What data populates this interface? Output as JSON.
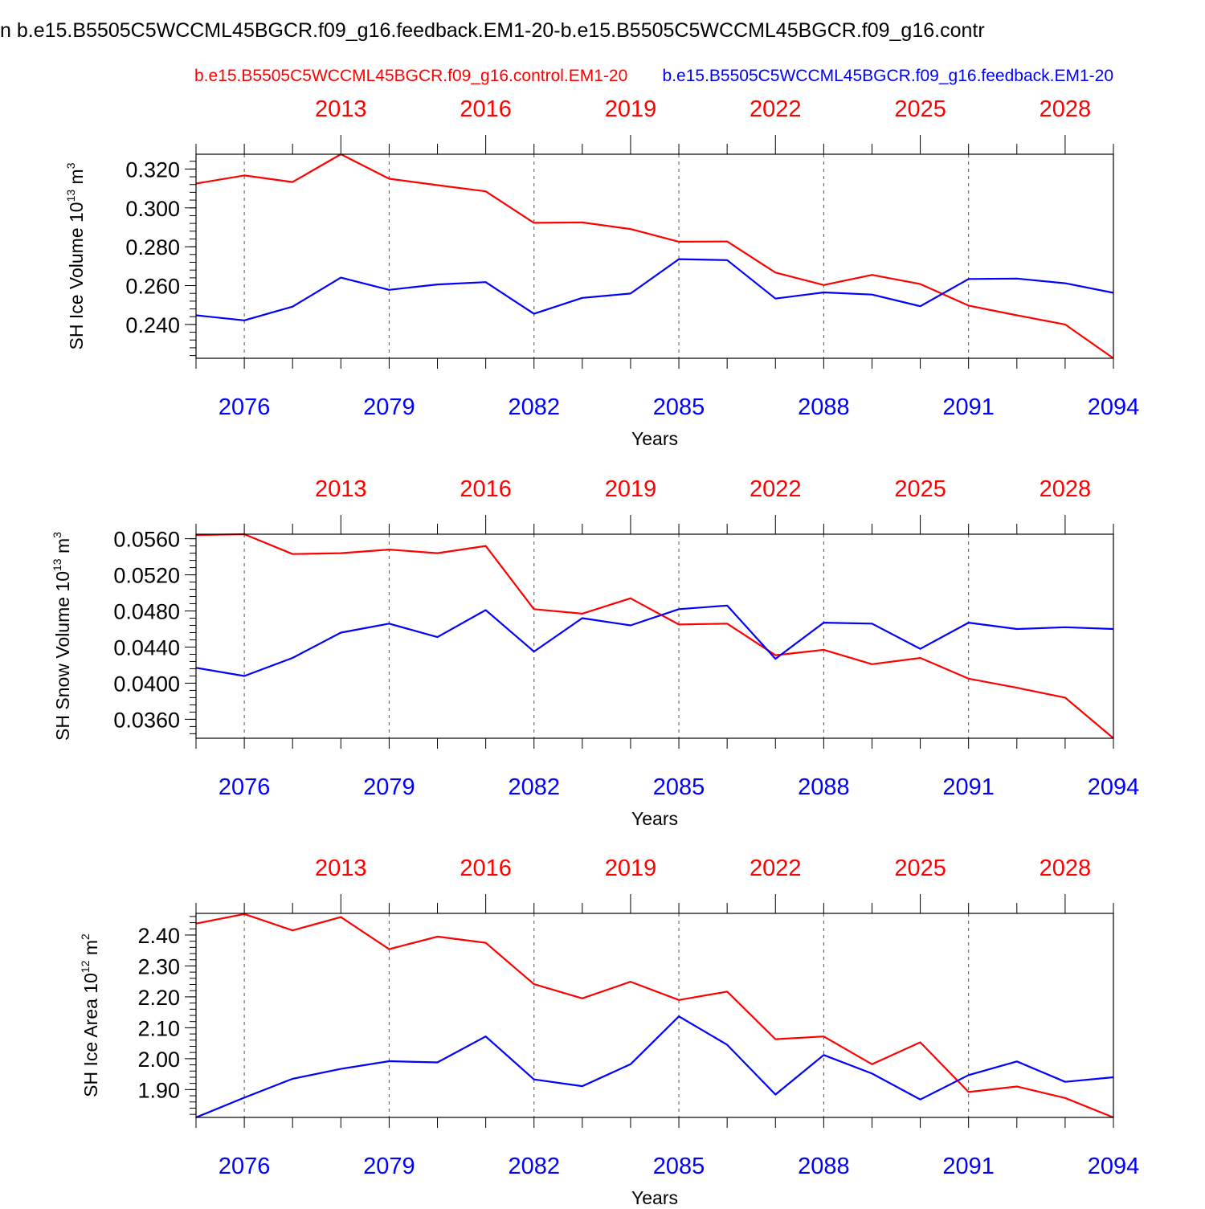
{
  "figure": {
    "title": "n b.e15.B5505C5WCCML45BGCR.f09_g16.feedback.EM1-20-b.e15.B5505C5WCCML45BGCR.f09_g16.contr",
    "legend_red": "b.e15.B5505C5WCCML45BGCR.f09_g16.control.EM1-20",
    "legend_blue": "b.e15.B5505C5WCCML45BGCR.f09_g16.feedback.EM1-20",
    "colors": {
      "red": "#ff0000",
      "blue": "#0000ff",
      "axis": "#000000",
      "grid": "#555555"
    }
  },
  "chart_data": [
    {
      "type": "line",
      "ylabel": "SH Ice Volume",
      "ylabel_unit": "10",
      "ylabel_exp": "13",
      "ylabel_unit2": "m",
      "ylabel_exp2": "3",
      "xlabel": "Years",
      "ylim": [
        0.2226,
        0.3276
      ],
      "yticks": [
        "0.240",
        "0.260",
        "0.280",
        "0.300",
        "0.320"
      ],
      "ytick_values": [
        0.24,
        0.26,
        0.28,
        0.3,
        0.32
      ],
      "ymajor_step": 0.02,
      "yminor_step": 0.004,
      "x_bottom": [
        2075,
        2076,
        2077,
        2078,
        2079,
        2080,
        2081,
        2082,
        2083,
        2084,
        2085,
        2086,
        2087,
        2088,
        2089,
        2090,
        2091,
        2092,
        2093,
        2094
      ],
      "bottom_tick_labels": [
        "2076",
        "2079",
        "2082",
        "2085",
        "2088",
        "2091",
        "2094"
      ],
      "top_tick_labels": [
        "2013",
        "2016",
        "2019",
        "2022",
        "2025",
        "2028"
      ],
      "series": [
        {
          "name": "b.e15.B5505C5WCCML45BGCR.f09_g16.control.EM1-20",
          "color": "red",
          "values": [
            0.3125,
            0.3167,
            0.3133,
            0.3276,
            0.315,
            0.3117,
            0.3085,
            0.2923,
            0.2925,
            0.2891,
            0.2826,
            0.2827,
            0.2667,
            0.2603,
            0.2655,
            0.2608,
            0.2497,
            0.2447,
            0.24,
            0.2226
          ]
        },
        {
          "name": "b.e15.B5505C5WCCML45BGCR.f09_g16.feedback.EM1-20",
          "color": "blue",
          "values": [
            0.2447,
            0.2421,
            0.2492,
            0.2641,
            0.2578,
            0.2606,
            0.2618,
            0.2455,
            0.2537,
            0.2559,
            0.2736,
            0.2731,
            0.2533,
            0.2565,
            0.2554,
            0.2494,
            0.2634,
            0.2636,
            0.2612,
            0.2563
          ]
        }
      ]
    },
    {
      "type": "line",
      "ylabel": "SH Snow Volume",
      "ylabel_unit": "10",
      "ylabel_exp": "13",
      "ylabel_unit2": "m",
      "ylabel_exp2": "3",
      "xlabel": "Years",
      "ylim": [
        0.0339,
        0.0565
      ],
      "yticks": [
        "0.0360",
        "0.0400",
        "0.0440",
        "0.0480",
        "0.0520",
        "0.0560"
      ],
      "ytick_values": [
        0.036,
        0.04,
        0.044,
        0.048,
        0.052,
        0.056
      ],
      "ymajor_step": 0.004,
      "yminor_step": 0.0008,
      "x_bottom": [
        2075,
        2076,
        2077,
        2078,
        2079,
        2080,
        2081,
        2082,
        2083,
        2084,
        2085,
        2086,
        2087,
        2088,
        2089,
        2090,
        2091,
        2092,
        2093,
        2094
      ],
      "bottom_tick_labels": [
        "2076",
        "2079",
        "2082",
        "2085",
        "2088",
        "2091",
        "2094"
      ],
      "top_tick_labels": [
        "2013",
        "2016",
        "2019",
        "2022",
        "2025",
        "2028"
      ],
      "series": [
        {
          "name": "b.e15.B5505C5WCCML45BGCR.f09_g16.control.EM1-20",
          "color": "red",
          "values": [
            0.0564,
            0.0565,
            0.0543,
            0.0544,
            0.0548,
            0.0544,
            0.0552,
            0.0482,
            0.0477,
            0.0494,
            0.0465,
            0.0466,
            0.0431,
            0.0437,
            0.0421,
            0.0428,
            0.0405,
            0.0395,
            0.0384,
            0.0339
          ]
        },
        {
          "name": "b.e15.B5505C5WCCML45BGCR.f09_g16.feedback.EM1-20",
          "color": "blue",
          "values": [
            0.0417,
            0.0408,
            0.0428,
            0.0456,
            0.0466,
            0.0451,
            0.0481,
            0.0435,
            0.0472,
            0.0464,
            0.0482,
            0.0486,
            0.0427,
            0.0467,
            0.0466,
            0.0438,
            0.0467,
            0.046,
            0.0462,
            0.046
          ]
        }
      ]
    },
    {
      "type": "line",
      "ylabel": "SH Ice Area",
      "ylabel_unit": "10",
      "ylabel_exp": "12",
      "ylabel_unit2": "m",
      "ylabel_exp2": "2",
      "xlabel": "Years",
      "ylim": [
        1.81,
        2.47
      ],
      "yticks": [
        "1.90",
        "2.00",
        "2.10",
        "2.20",
        "2.30",
        "2.40"
      ],
      "ytick_values": [
        1.9,
        2.0,
        2.1,
        2.2,
        2.3,
        2.4
      ],
      "ymajor_step": 0.1,
      "yminor_step": 0.02,
      "x_bottom": [
        2075,
        2076,
        2077,
        2078,
        2079,
        2080,
        2081,
        2082,
        2083,
        2084,
        2085,
        2086,
        2087,
        2088,
        2089,
        2090,
        2091,
        2092,
        2093,
        2094
      ],
      "bottom_tick_labels": [
        "2076",
        "2079",
        "2082",
        "2085",
        "2088",
        "2091",
        "2094"
      ],
      "top_tick_labels": [
        "2013",
        "2016",
        "2019",
        "2022",
        "2025",
        "2028"
      ],
      "series": [
        {
          "name": "b.e15.B5505C5WCCML45BGCR.f09_g16.control.EM1-20",
          "color": "red",
          "values": [
            2.437,
            2.468,
            2.415,
            2.458,
            2.354,
            2.395,
            2.375,
            2.241,
            2.195,
            2.249,
            2.19,
            2.217,
            2.063,
            2.072,
            1.982,
            2.053,
            1.892,
            1.91,
            1.873,
            1.81
          ]
        },
        {
          "name": "b.e15.B5505C5WCCML45BGCR.f09_g16.feedback.EM1-20",
          "color": "blue",
          "values": [
            1.81,
            1.874,
            1.935,
            1.967,
            1.992,
            1.988,
            2.072,
            1.933,
            1.911,
            1.982,
            2.137,
            2.045,
            1.884,
            2.012,
            1.952,
            1.868,
            1.947,
            1.991,
            1.925,
            1.94
          ]
        }
      ]
    }
  ]
}
